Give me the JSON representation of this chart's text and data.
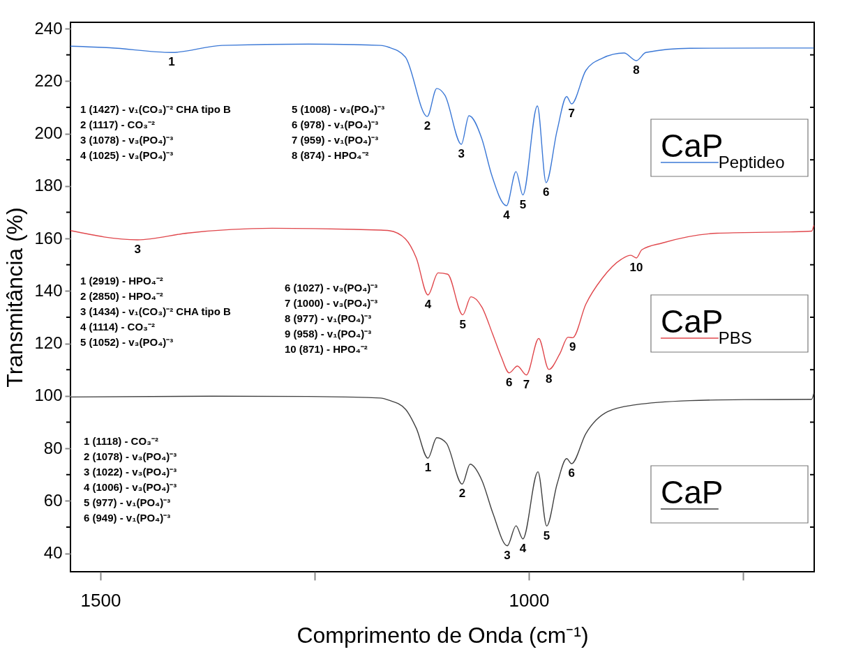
{
  "chart_data": {
    "type": "line",
    "xlabel": "Comprimento de Onda (cm⁻¹)",
    "ylabel": "Transmitância (%)",
    "xlim": [
      1535,
      667
    ],
    "ylim": [
      33,
      242.4
    ],
    "xticks": [
      1500,
      {
        "value": 1250,
        "label": null
      },
      1000,
      {
        "value": 750,
        "label": null
      }
    ],
    "yticks": [
      40,
      {
        "value": 50,
        "label": null
      },
      60,
      {
        "value": 70,
        "label": null
      },
      80,
      {
        "value": 90,
        "label": null
      },
      100,
      {
        "value": 110,
        "label": null
      },
      120,
      {
        "value": 130,
        "label": null
      },
      140,
      {
        "value": 150,
        "label": null
      },
      160,
      {
        "value": 170,
        "label": null
      },
      180,
      {
        "value": 190,
        "label": null
      },
      200,
      {
        "value": 210,
        "label": null
      },
      220,
      {
        "value": 230,
        "label": null
      },
      240
    ],
    "grid": false,
    "legend": "right",
    "series": [
      {
        "name": "CaP$_{Peptideo}$",
        "color": "#3b78d6",
        "x": [
          1535,
          1489,
          1417,
          1358,
          1257,
          1173,
          1163.5,
          1144.2,
          1118.6,
          1107.5,
          1098,
          1078.8,
          1069.9,
          1054.9,
          1043.6,
          1026.1,
          1015,
          1007,
          990.1,
          979.9,
          967.1,
          955.9,
          950.2,
          933.6,
          914.5,
          888.9,
          874.6,
          863.4,
          812.4,
          716.6,
          667.5
        ],
        "values": [
          233.3,
          232.7,
          230.9,
          233.6,
          234.1,
          233.6,
          232.9,
          229.2,
          206.5,
          217.2,
          214.6,
          195.9,
          206.8,
          198,
          184.4,
          172.5,
          185.5,
          176.6,
          210.5,
          181.3,
          201.1,
          214.1,
          211.3,
          224,
          228.7,
          230.7,
          227.8,
          230.9,
          232.5,
          232.6,
          232.6
        ]
      },
      {
        "name": "CaP$_{PBS}$",
        "color": "#e0474c",
        "x": [
          1535,
          1456.6,
          1397.7,
          1299.6,
          1173.4,
          1163.4,
          1144.2,
          1131.4,
          1117.8,
          1105.9,
          1094.8,
          1077.2,
          1067.6,
          1054.9,
          1042.1,
          1032.5,
          1023,
          1013.4,
          1002.9,
          988.5,
          976.7,
          963.9,
          954.3,
          948.9,
          933.6,
          914.5,
          892.1,
          881,
          874.6,
          868.2,
          844.2,
          780.5,
          700.7,
          670,
          667.5
        ],
        "values": [
          163,
          159.5,
          162.1,
          163.9,
          163.2,
          163,
          159.9,
          152.6,
          138.5,
          146.9,
          146.4,
          130.9,
          137.8,
          133.9,
          123.4,
          115.1,
          108.8,
          111.4,
          108,
          121.9,
          110.1,
          116.1,
          122.4,
          122.2,
          134.9,
          144.8,
          152.1,
          153.6,
          152.6,
          155.7,
          158.3,
          162,
          162.5,
          162.8,
          165
        ]
      },
      {
        "name": "CaP",
        "color": "#404040",
        "x": [
          1535,
          1369.7,
          1257.5,
          1173.4,
          1163.5,
          1144.2,
          1131.4,
          1117.8,
          1107.5,
          1096.3,
          1077.8,
          1068.6,
          1054.9,
          1042.1,
          1025.2,
          1015,
          1007,
          989.4,
          979.2,
          967.1,
          955.9,
          950.2,
          933.6,
          908.1,
          876.1,
          812.4,
          748.5,
          670,
          667.5
        ],
        "values": [
          99.6,
          99.9,
          99.8,
          99.2,
          98.4,
          95,
          87.7,
          76.3,
          84.1,
          82,
          66.4,
          74,
          67.9,
          55.4,
          42.9,
          50.5,
          45.5,
          71.1,
          50.4,
          66.4,
          76.1,
          74.2,
          85.6,
          94,
          96.6,
          98.2,
          98.6,
          98.7,
          101
        ]
      }
    ],
    "annotations": [
      {
        "text": "1",
        "x": 1417,
        "y": 230.9
      },
      {
        "text": "2",
        "x": 1118.6,
        "y": 206.5
      },
      {
        "text": "3",
        "x": 1078.8,
        "y": 195.9
      },
      {
        "text": "4",
        "x": 1026.1,
        "y": 172.5
      },
      {
        "text": "5",
        "x": 1007,
        "y": 176.6
      },
      {
        "text": "6",
        "x": 979.9,
        "y": 181.3
      },
      {
        "text": "7",
        "x": 950.2,
        "y": 211.3
      },
      {
        "text": "8",
        "x": 874.6,
        "y": 227.8
      },
      {
        "text": "3",
        "x": 1456.6,
        "y": 159.5
      },
      {
        "text": "4",
        "x": 1117.8,
        "y": 138.5
      },
      {
        "text": "5",
        "x": 1077.2,
        "y": 130.9
      },
      {
        "text": "6",
        "x": 1023,
        "y": 108.8
      },
      {
        "text": "7",
        "x": 1002.9,
        "y": 108
      },
      {
        "text": "8",
        "x": 976.7,
        "y": 110.1
      },
      {
        "text": "9",
        "x": 948.9,
        "y": 122.2
      },
      {
        "text": "10",
        "x": 874.6,
        "y": 152.6
      },
      {
        "text": "1",
        "x": 1117.8,
        "y": 76.3
      },
      {
        "text": "2",
        "x": 1077.8,
        "y": 66.4
      },
      {
        "text": "3",
        "x": 1025.2,
        "y": 42.9
      },
      {
        "text": "4",
        "x": 1007,
        "y": 45.5
      },
      {
        "text": "5",
        "x": 979.2,
        "y": 50.4
      },
      {
        "text": "6",
        "x": 950.2,
        "y": 74.2
      },
      "1 (1427) - v₁(CO₃)⁻² CHA tipo B\n2 (1117) - CO₃⁻²\n3 (1078) - v₃(PO₄)⁻³\n4 (1025) - v₃(PO₄)⁻³",
      "5 (1008) - v₃(PO₄)⁻³\n6 (978) - v₁(PO₄)⁻³\n7 (959) - v₁(PO₄)⁻³\n8 (874) - HPO₄⁻²",
      "1 (2919) - HPO₄⁻²\n2 (2850) - HPO₄⁻²\n3 (1434) - v₁(CO₃)⁻² CHA tipo B\n4 (1114) - CO₃⁻²\n5 (1052) - v₃(PO₄)⁻³",
      "6 (1027) - v₃(PO₄)⁻³\n7 (1000) - v₃(PO₄)⁻³\n8 (977) - v₁(PO₄)⁻³\n9 (958) - v₁(PO₄)⁻³\n10 (871) - HPO₄⁻²",
      "1 (1118) - CO₃⁻²\n2 (1078) - v₃(PO₄)⁻³\n3 (1022) - v₃(PO₄)⁻³\n4 (1006) - v₃(PO₄)⁻³\n5 (977) - v₁(PO₄)⁻³\n6 (949) - v₁(PO₄)⁻³"
    ]
  }
}
